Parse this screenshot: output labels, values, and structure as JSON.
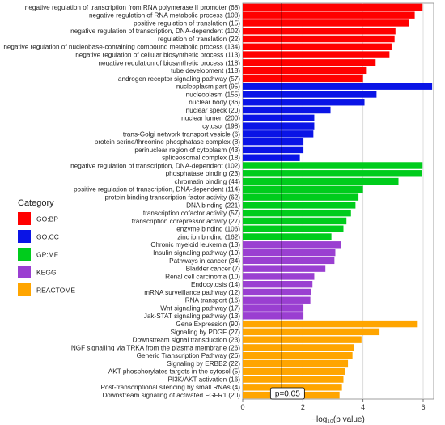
{
  "chart_data": {
    "type": "bar",
    "orientation": "horizontal",
    "xlabel": "−log₁₀(p value)",
    "xlim": [
      0,
      6.35
    ],
    "xticks": [
      0,
      2,
      4,
      6
    ],
    "grid": true,
    "threshold": {
      "value": 1.301,
      "label": "p=0.05"
    },
    "legend": {
      "title": "Category",
      "placement": "left",
      "entries": [
        {
          "name": "GO:BP",
          "color": "#ff0000"
        },
        {
          "name": "GO:CC",
          "color": "#0a14e6"
        },
        {
          "name": "GP:MF",
          "color": "#00cc1c"
        },
        {
          "name": "KEGG",
          "color": "#9a3fd1"
        },
        {
          "name": "REACTOME",
          "color": "#ffa500"
        }
      ]
    },
    "bars": [
      {
        "label": "negative regulation of transcription from RNA polymerase II promoter (68)",
        "value": 5.98,
        "category": "GO:BP"
      },
      {
        "label": "negative regulation of RNA metabolic process (108)",
        "value": 5.72,
        "category": "GO:BP"
      },
      {
        "label": "positive regulation of translation (15)",
        "value": 5.52,
        "category": "GO:BP"
      },
      {
        "label": "negative regulation of transcription,  DNA-dependent (102)",
        "value": 5.08,
        "category": "GO:BP"
      },
      {
        "label": "regulation of translation (22)",
        "value": 5.05,
        "category": "GO:BP"
      },
      {
        "label": "negative regulation of nucleobase-containing compound metabolic process (134)",
        "value": 4.95,
        "category": "GO:BP"
      },
      {
        "label": "negative regulation of cellular biosynthetic process (113)",
        "value": 4.88,
        "category": "GO:BP"
      },
      {
        "label": "negative regulation of biosynthetic process (118)",
        "value": 4.42,
        "category": "GO:BP"
      },
      {
        "label": "tube development (118)",
        "value": 4.1,
        "category": "GO:BP"
      },
      {
        "label": "androgen receptor signaling pathway (57)",
        "value": 4.0,
        "category": "GO:BP"
      },
      {
        "label": "nucleoplasm part (95)",
        "value": 6.3,
        "category": "GO:CC"
      },
      {
        "label": "nucleoplasm (155)",
        "value": 4.45,
        "category": "GO:CC"
      },
      {
        "label": "nuclear body (36)",
        "value": 4.05,
        "category": "GO:CC"
      },
      {
        "label": "nuclear speck (20)",
        "value": 2.92,
        "category": "GO:CC"
      },
      {
        "label": "nuclear lumen (200)",
        "value": 2.38,
        "category": "GO:CC"
      },
      {
        "label": "cytosol (198)",
        "value": 2.38,
        "category": "GO:CC"
      },
      {
        "label": "trans-Golgi network transport vesicle (6)",
        "value": 2.35,
        "category": "GO:CC"
      },
      {
        "label": "protein serine/threonine phosphatase complex (8)",
        "value": 2.02,
        "category": "GO:CC"
      },
      {
        "label": "perinuclear region of cytoplasm (43)",
        "value": 2.02,
        "category": "GO:CC"
      },
      {
        "label": "spliceosomal complex (18)",
        "value": 1.9,
        "category": "GO:CC"
      },
      {
        "label": "negative regulation of transcription, DNA-dependent (102)",
        "value": 5.98,
        "category": "GP:MF"
      },
      {
        "label": "phosphatase binding (23)",
        "value": 5.95,
        "category": "GP:MF"
      },
      {
        "label": "chromatin binding (44)",
        "value": 5.18,
        "category": "GP:MF"
      },
      {
        "label": "positive regulation of transcription, DNA-dependent (114)",
        "value": 4.0,
        "category": "GP:MF"
      },
      {
        "label": "protein binding transcription factor activity (62)",
        "value": 3.85,
        "category": "GP:MF"
      },
      {
        "label": "DNA binding (221)",
        "value": 3.75,
        "category": "GP:MF"
      },
      {
        "label": "transcription cofactor activity (57)",
        "value": 3.6,
        "category": "GP:MF"
      },
      {
        "label": "transcription corepressor activity (27)",
        "value": 3.45,
        "category": "GP:MF"
      },
      {
        "label": "enzyme binding (106)",
        "value": 3.35,
        "category": "GP:MF"
      },
      {
        "label": "zinc ion binding (162)",
        "value": 2.95,
        "category": "GP:MF"
      },
      {
        "label": "Chronic myeloid leukemia (13)",
        "value": 3.28,
        "category": "KEGG"
      },
      {
        "label": "Insulin signaling pathway (19)",
        "value": 3.08,
        "category": "KEGG"
      },
      {
        "label": "Pathways in cancer (34)",
        "value": 3.05,
        "category": "KEGG"
      },
      {
        "label": "Bladder cancer (7)",
        "value": 2.75,
        "category": "KEGG"
      },
      {
        "label": "Renal cell carcinoma (10)",
        "value": 2.38,
        "category": "KEGG"
      },
      {
        "label": "Endocytosis (14)",
        "value": 2.32,
        "category": "KEGG"
      },
      {
        "label": "mRNA surveillance pathway (12)",
        "value": 2.28,
        "category": "KEGG"
      },
      {
        "label": "RNA transport (16)",
        "value": 2.25,
        "category": "KEGG"
      },
      {
        "label": "Wnt signaling pathway (17)",
        "value": 2.02,
        "category": "KEGG"
      },
      {
        "label": "Jak-STAT signaling pathway (13)",
        "value": 2.02,
        "category": "KEGG"
      },
      {
        "label": "Gene Expression (90)",
        "value": 5.82,
        "category": "REACTOME"
      },
      {
        "label": "Signaling by PDGF (27)",
        "value": 4.55,
        "category": "REACTOME"
      },
      {
        "label": "Downstream signal transduction (23)",
        "value": 3.95,
        "category": "REACTOME"
      },
      {
        "label": "NGF signalling via TRKA from the plasma membrane (26)",
        "value": 3.7,
        "category": "REACTOME"
      },
      {
        "label": "Generic Transcription Pathway (26)",
        "value": 3.65,
        "category": "REACTOME"
      },
      {
        "label": "Signaling by ERBB2 (22)",
        "value": 3.5,
        "category": "REACTOME"
      },
      {
        "label": "AKT phosphorylates targets in the cytosol (5)",
        "value": 3.4,
        "category": "REACTOME"
      },
      {
        "label": "PI3K/AKT activation (16)",
        "value": 3.35,
        "category": "REACTOME"
      },
      {
        "label": "Post-transcriptional silencing by small RNAs (4)",
        "value": 3.3,
        "category": "REACTOME"
      },
      {
        "label": "Downstream signaling of activated FGFR1 (20)",
        "value": 3.22,
        "category": "REACTOME"
      }
    ]
  }
}
